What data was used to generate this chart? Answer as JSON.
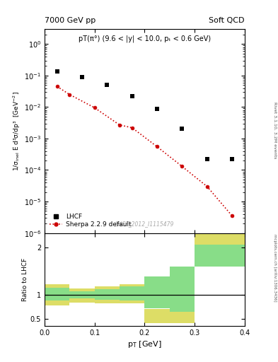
{
  "title_left": "7000 GeV pp",
  "title_right": "Soft QCD",
  "annotation": "pT(π°) (9.6 < |y| < 10.0, pₜ < 0.6 GeV)",
  "watermark": "LHCF_2012_I1115479",
  "right_label_top": "Rivet 3.1.10, 3.2M events",
  "right_label_bot": "mcplots.cern.ch [arXiv:1306.3436]",
  "lhcf_x": [
    0.025,
    0.075,
    0.125,
    0.175,
    0.225,
    0.275,
    0.325,
    0.375
  ],
  "lhcf_y": [
    0.135,
    0.09,
    0.05,
    0.022,
    0.0085,
    0.002,
    0.00022,
    0.00022
  ],
  "sherpa_x": [
    0.025,
    0.05,
    0.1,
    0.15,
    0.175,
    0.225,
    0.275,
    0.325,
    0.375
  ],
  "sherpa_y": [
    0.045,
    0.025,
    0.0095,
    0.0027,
    0.0022,
    0.00055,
    0.00013,
    3e-05,
    3.5e-06
  ],
  "xlabel": "p$_\\mathrm{T}$ [GeV]",
  "ylabel": "1/σ$_\\mathrm{inel}$ E d³σ/dp³  [GeV$^{-2}$]",
  "ylabel_ratio": "Ratio to LHCF",
  "xlim": [
    0.0,
    0.4
  ],
  "ylim_main": [
    1e-06,
    3.0
  ],
  "ylim_ratio": [
    0.35,
    2.3
  ],
  "ratio_bin_edges": [
    0.0,
    0.05,
    0.1,
    0.15,
    0.2,
    0.25,
    0.3,
    0.4
  ],
  "ratio_green_low": [
    0.88,
    0.92,
    0.9,
    0.88,
    0.72,
    0.65,
    1.6,
    1.6
  ],
  "ratio_green_high": [
    1.15,
    1.08,
    1.12,
    1.18,
    1.38,
    1.6,
    2.05,
    2.05
  ],
  "ratio_yellow_low": [
    0.78,
    0.84,
    0.83,
    0.83,
    0.4,
    0.4,
    1.6,
    1.6
  ],
  "ratio_yellow_high": [
    1.23,
    1.14,
    1.18,
    1.22,
    0.7,
    0.7,
    2.3,
    2.3
  ],
  "lhcf_color": "#000000",
  "sherpa_color": "#cc0000",
  "green_color": "#88dd88",
  "yellow_color": "#dddd66",
  "lhcf_marker": "s",
  "sherpa_marker": "o",
  "legend_lhcf": "LHCF",
  "legend_sherpa": "Sherpa 2.2.9 default"
}
